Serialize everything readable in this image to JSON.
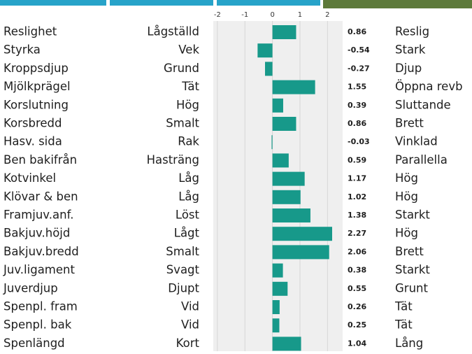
{
  "chart_data": {
    "type": "bar",
    "orientation": "horizontal",
    "categories": [
      "Reslighet",
      "Styrka",
      "Kroppsdjup",
      "Mjölkprägel",
      "Korslutning",
      "Korsbredd",
      "Hasv. sida",
      "Ben bakifrån",
      "Kotvinkel",
      "Klövar & ben",
      "Framjuv.anf.",
      "Bakjuv.höjd",
      "Bakjuv.bredd",
      "Juv.ligament",
      "Juverdjup",
      "Spenpl. fram",
      "Spenpl. bak",
      "Spenlängd"
    ],
    "low_labels": [
      "Lågställd",
      "Vek",
      "Grund",
      "Tät",
      "Hög",
      "Smalt",
      "Rak",
      "Hasträng",
      "Låg",
      "Låg",
      "Löst",
      "Lågt",
      "Smalt",
      "Svagt",
      "Djupt",
      "Vid",
      "Vid",
      "Kort"
    ],
    "high_labels": [
      "Reslig",
      "Stark",
      "Djup",
      "Öppna revb",
      "Sluttande",
      "Brett",
      "Vinklad",
      "Parallella",
      "Hög",
      "Hög",
      "Starkt",
      "Hög",
      "Brett",
      "Starkt",
      "Grunt",
      "Tät",
      "Tät",
      "Lång"
    ],
    "values": [
      0.86,
      -0.54,
      -0.27,
      1.55,
      0.39,
      0.86,
      -0.03,
      0.59,
      1.17,
      1.02,
      1.38,
      2.27,
      2.06,
      0.38,
      0.55,
      0.26,
      0.25,
      1.04
    ],
    "color": "#17998a",
    "xlim": [
      -2.15,
      2.55
    ],
    "xticks": [
      -2,
      -1,
      0,
      1,
      2
    ],
    "grid": true
  }
}
